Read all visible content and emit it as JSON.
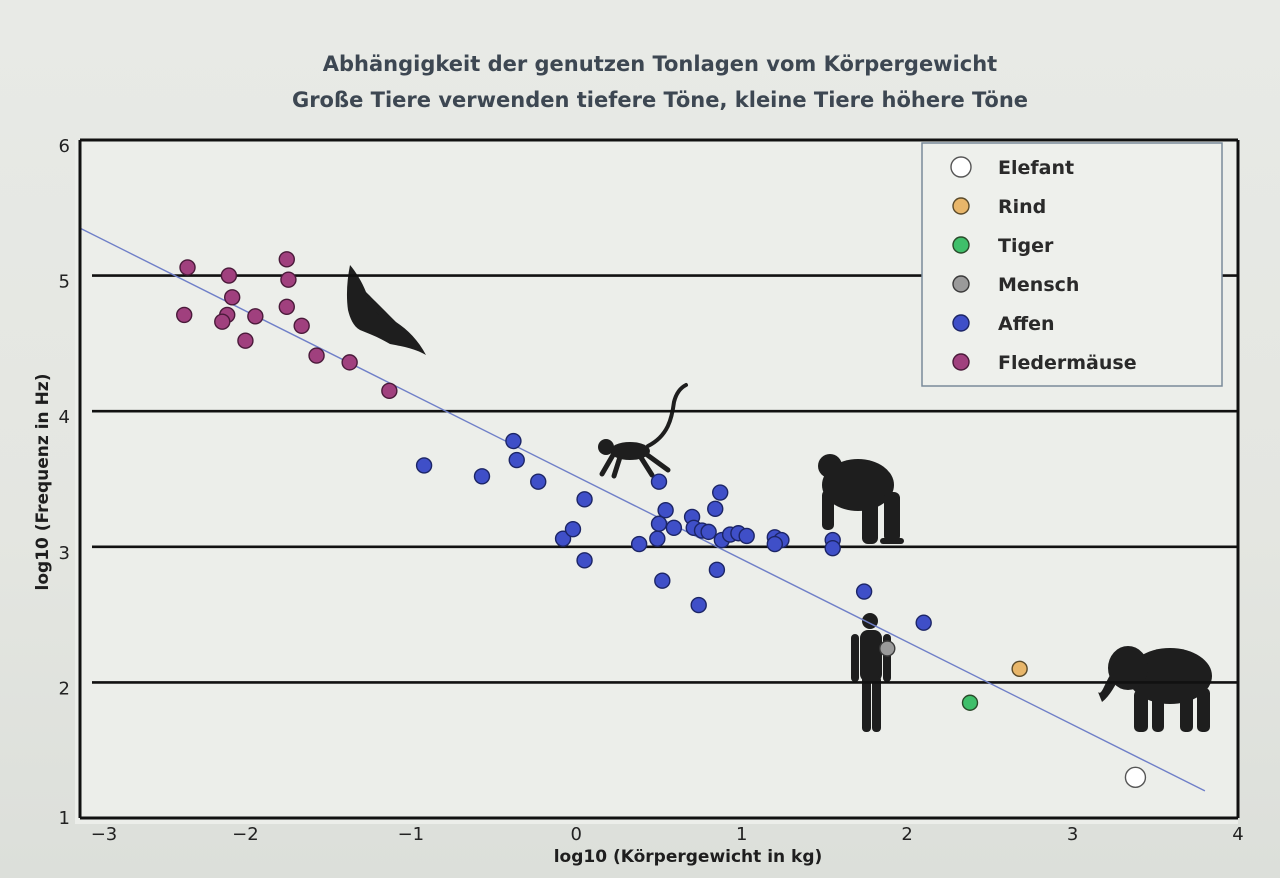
{
  "chart_data": {
    "type": "scatter",
    "title": "Abhängigkeit der genutzen Tonlagen vom Körpergewicht",
    "subtitle": "Große Tiere verwenden tiefere Töne, kleine Tiere höhere Töne",
    "xlabel": "log10 (Körpergewicht in kg)",
    "ylabel": "log10 (Frequenz in Hz)",
    "xlim": [
      -3,
      4
    ],
    "ylim": [
      1,
      6
    ],
    "x_ticks": [
      "−3",
      "−2",
      "−1",
      "0",
      "1",
      "2",
      "3",
      "4"
    ],
    "y_ticks": [
      "1",
      "2",
      "3",
      "4",
      "5",
      "6"
    ],
    "grid": "horizontal lines at 2, 3, 4, 5",
    "legend_position": "top-right",
    "trend_line": {
      "x": [
        -3,
        3.8
      ],
      "y": [
        5.35,
        1.2
      ],
      "color": "#6f7fc8"
    },
    "series": [
      {
        "name": "Elefant",
        "color": "#ffffff",
        "stroke": "#555555",
        "points": [
          [
            3.38,
            1.3
          ]
        ]
      },
      {
        "name": "Rind",
        "color": "#e8b66a",
        "stroke": "#5a4a2a",
        "points": [
          [
            2.68,
            2.1
          ]
        ]
      },
      {
        "name": "Tiger",
        "color": "#3fbf6a",
        "stroke": "#2a4a2a",
        "points": [
          [
            2.38,
            1.85
          ]
        ]
      },
      {
        "name": "Mensch",
        "color": "#9a9a9a",
        "stroke": "#3a3a3a",
        "points": [
          [
            1.88,
            2.25
          ]
        ]
      },
      {
        "name": "Affen",
        "color": "#3f4fc8",
        "stroke": "#1c2566",
        "points": [
          [
            -0.92,
            3.6
          ],
          [
            -0.57,
            3.52
          ],
          [
            -0.38,
            3.78
          ],
          [
            -0.36,
            3.64
          ],
          [
            -0.23,
            3.48
          ],
          [
            0.05,
            3.35
          ],
          [
            -0.08,
            3.06
          ],
          [
            -0.02,
            3.13
          ],
          [
            0.05,
            2.9
          ],
          [
            0.38,
            3.02
          ],
          [
            0.49,
            3.06
          ],
          [
            0.5,
            3.17
          ],
          [
            0.5,
            3.48
          ],
          [
            0.54,
            3.27
          ],
          [
            0.59,
            3.14
          ],
          [
            0.52,
            2.75
          ],
          [
            0.7,
            3.22
          ],
          [
            0.71,
            3.14
          ],
          [
            0.76,
            3.12
          ],
          [
            0.8,
            3.11
          ],
          [
            0.84,
            3.28
          ],
          [
            0.87,
            3.4
          ],
          [
            0.88,
            3.05
          ],
          [
            0.93,
            3.09
          ],
          [
            0.98,
            3.1
          ],
          [
            1.03,
            3.08
          ],
          [
            0.85,
            2.83
          ],
          [
            0.74,
            2.57
          ],
          [
            1.2,
            3.07
          ],
          [
            1.24,
            3.05
          ],
          [
            1.2,
            3.02
          ],
          [
            1.55,
            3.05
          ],
          [
            1.55,
            2.99
          ],
          [
            1.74,
            2.67
          ],
          [
            2.1,
            2.44
          ]
        ]
      },
      {
        "name": "Fledermäuse",
        "color": "#a0407e",
        "stroke": "#4a1a3a",
        "points": [
          [
            -2.35,
            5.06
          ],
          [
            -2.1,
            5.0
          ],
          [
            -2.08,
            4.84
          ],
          [
            -1.75,
            5.12
          ],
          [
            -1.74,
            4.97
          ],
          [
            -1.75,
            4.77
          ],
          [
            -2.37,
            4.71
          ],
          [
            -2.11,
            4.71
          ],
          [
            -2.14,
            4.66
          ],
          [
            -1.94,
            4.7
          ],
          [
            -1.66,
            4.63
          ],
          [
            -2.0,
            4.52
          ],
          [
            -1.57,
            4.41
          ],
          [
            -1.37,
            4.36
          ],
          [
            -1.13,
            4.15
          ]
        ]
      }
    ]
  }
}
